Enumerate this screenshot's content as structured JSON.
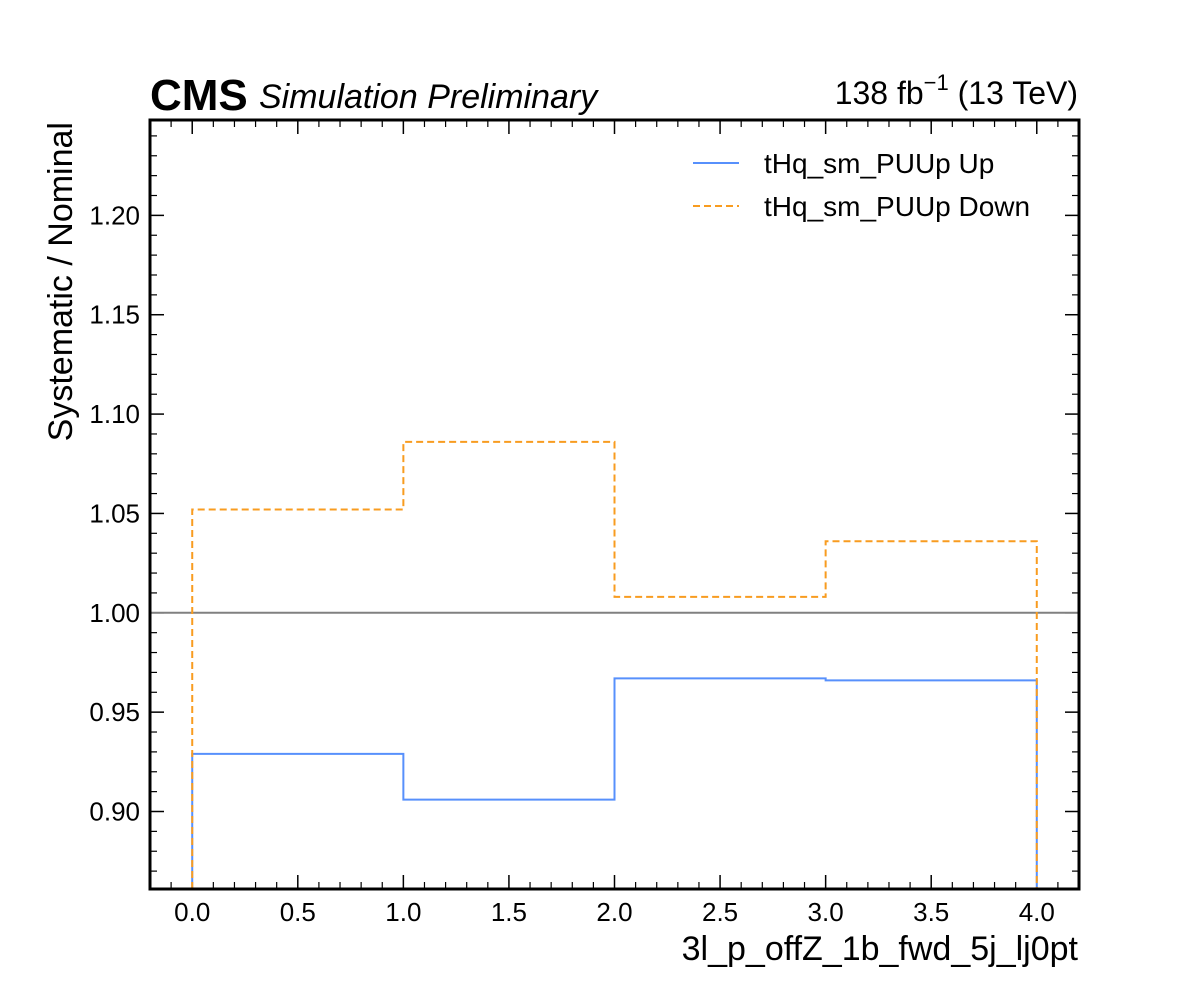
{
  "header": {
    "experiment": "CMS",
    "status": "Simulation Preliminary",
    "lumi_value": "138 fb",
    "lumi_exponent": "−1",
    "energy": " (13 TeV)"
  },
  "chart_data": {
    "type": "line",
    "drawstyle": "steps",
    "xlabel": "3l_p_offZ_1b_fwd_5j_lj0pt",
    "ylabel": "Systematic / Nominal",
    "xlim": [
      -0.2,
      4.2
    ],
    "ylim": [
      0.861,
      1.248
    ],
    "xticks": [
      0.0,
      0.5,
      1.0,
      1.5,
      2.0,
      2.5,
      3.0,
      3.5,
      4.0
    ],
    "xtick_labels": [
      "0.0",
      "0.5",
      "1.0",
      "1.5",
      "2.0",
      "2.5",
      "3.0",
      "3.5",
      "4.0"
    ],
    "yticks": [
      0.9,
      0.95,
      1.0,
      1.05,
      1.1,
      1.15,
      1.2
    ],
    "ytick_labels": [
      "0.90",
      "0.95",
      "1.00",
      "1.05",
      "1.10",
      "1.15",
      "1.20"
    ],
    "bin_edges": [
      0,
      1,
      2,
      3,
      4
    ],
    "reference_line": 1.0,
    "legend_position": "top-right",
    "grid": false,
    "series": [
      {
        "name": "tHq_sm_PUUp Up",
        "values": [
          0.929,
          0.906,
          0.967,
          0.966
        ],
        "color": "#5790fc",
        "style": "solid"
      },
      {
        "name": "tHq_sm_PUUp Down",
        "values": [
          1.052,
          1.086,
          1.008,
          1.036
        ],
        "color": "#f89c20",
        "style": "dashed"
      }
    ]
  }
}
